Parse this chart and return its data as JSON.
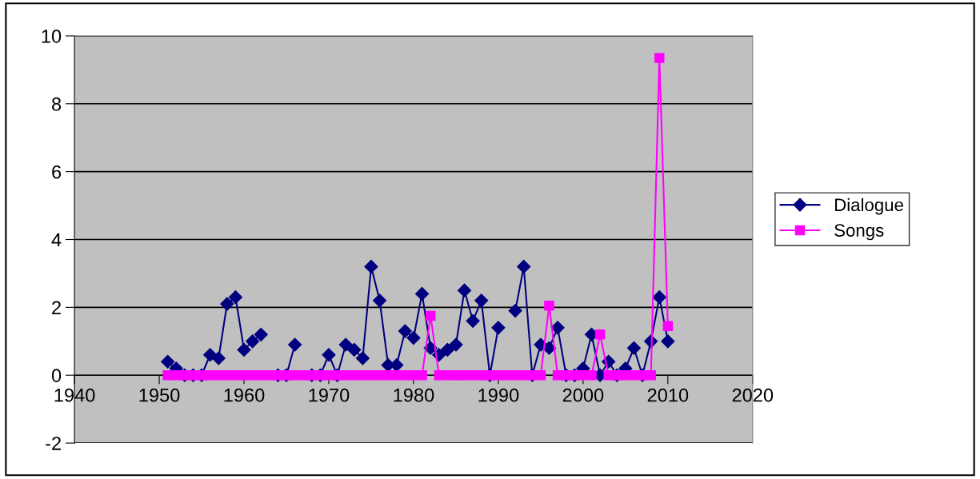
{
  "chart_data": {
    "type": "line",
    "x": [
      1951,
      1952,
      1953,
      1954,
      1955,
      1956,
      1957,
      1958,
      1959,
      1960,
      1961,
      1962,
      1963,
      1964,
      1965,
      1966,
      1967,
      1968,
      1969,
      1970,
      1971,
      1972,
      1973,
      1974,
      1975,
      1976,
      1977,
      1978,
      1979,
      1980,
      1981,
      1982,
      1983,
      1984,
      1985,
      1986,
      1987,
      1988,
      1989,
      1990,
      1991,
      1992,
      1993,
      1994,
      1995,
      1996,
      1997,
      1998,
      1999,
      2000,
      2001,
      2002,
      2003,
      2004,
      2005,
      2006,
      2007,
      2008,
      2009,
      2010
    ],
    "series": [
      {
        "name": "Dialogue",
        "color": "#000080",
        "marker": "diamond",
        "values": [
          0.4,
          0.2,
          0,
          0,
          0,
          0.6,
          0.5,
          2.1,
          2.3,
          0.75,
          1.0,
          1.2,
          null,
          0,
          0,
          0.9,
          null,
          0,
          0,
          0.6,
          0,
          0.9,
          0.75,
          0.5,
          3.2,
          2.2,
          0.3,
          0.3,
          1.3,
          1.1,
          2.4,
          0.8,
          0.6,
          0.75,
          0.9,
          2.5,
          1.6,
          2.2,
          0,
          1.4,
          null,
          1.9,
          3.2,
          0,
          0.9,
          0.8,
          1.4,
          0,
          0,
          0.2,
          1.2,
          0,
          0.4,
          0,
          0.2,
          0.8,
          0,
          1.0,
          2.3,
          1.0
        ]
      },
      {
        "name": "Songs",
        "color": "#ff00ff",
        "marker": "square",
        "values": [
          0,
          0,
          0,
          0,
          0,
          0,
          0,
          0,
          0,
          0,
          0,
          0,
          0,
          0,
          0,
          0,
          0,
          0,
          0,
          0,
          0,
          0,
          0,
          0,
          0,
          0,
          0,
          0,
          0,
          0,
          0,
          1.75,
          0,
          0,
          0,
          0,
          0,
          0,
          0,
          0,
          0,
          0,
          0,
          0,
          0,
          2.05,
          0,
          0,
          0,
          0,
          0,
          1.2,
          0,
          0,
          0,
          0,
          0,
          0,
          9.35,
          1.45
        ]
      }
    ],
    "xlim": [
      1940,
      2020
    ],
    "xticks": [
      1940,
      1950,
      1960,
      1970,
      1980,
      1990,
      2000,
      2010,
      2020
    ],
    "ylim": [
      -2,
      10
    ],
    "yticks": [
      -2,
      0,
      2,
      4,
      6,
      8,
      10
    ],
    "grid": "y",
    "legend": "right"
  }
}
